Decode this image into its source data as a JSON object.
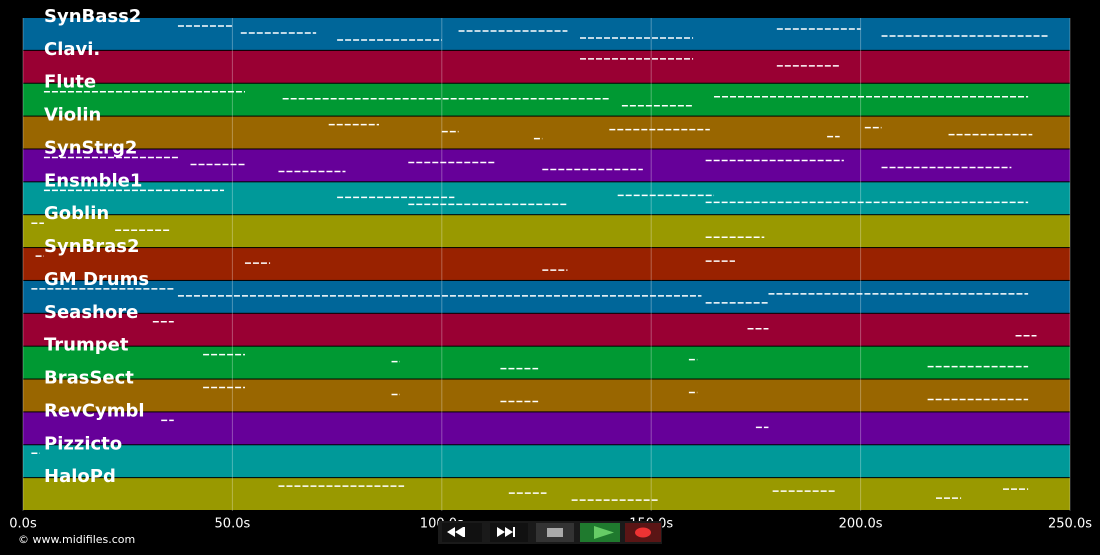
{
  "chart_data": {
    "type": "pianoroll",
    "xlim": [
      0,
      250
    ],
    "xticks": [
      {
        "value": 0,
        "label": "0.0s"
      },
      {
        "value": 50,
        "label": "50.0s"
      },
      {
        "value": 100,
        "label": "100.0s"
      },
      {
        "value": 150,
        "label": "150.0s"
      },
      {
        "value": 200,
        "label": "200.0s"
      },
      {
        "value": 250,
        "label": "250.0s"
      }
    ],
    "grid": true,
    "tracks": [
      {
        "name": "SynBass2",
        "color": "#006699",
        "notes": [
          [
            37,
            50
          ],
          [
            52,
            70
          ],
          [
            75,
            100
          ],
          [
            104,
            130
          ],
          [
            133,
            160
          ],
          [
            180,
            200
          ],
          [
            205,
            245
          ]
        ]
      },
      {
        "name": "Clavi.",
        "color": "#990033",
        "notes": [
          [
            133,
            160
          ],
          [
            180,
            195
          ]
        ]
      },
      {
        "name": "Flute",
        "color": "#009933",
        "notes": [
          [
            5,
            53
          ],
          [
            62,
            140
          ],
          [
            143,
            160
          ],
          [
            165,
            240
          ]
        ]
      },
      {
        "name": "Violin",
        "color": "#996600",
        "notes": [
          [
            73,
            85
          ],
          [
            100,
            104
          ],
          [
            122,
            124
          ],
          [
            140,
            164
          ],
          [
            192,
            195
          ],
          [
            201,
            205
          ],
          [
            221,
            241
          ]
        ]
      },
      {
        "name": "SynStrg2",
        "color": "#660099",
        "notes": [
          [
            5,
            37
          ],
          [
            40,
            53
          ],
          [
            61,
            77
          ],
          [
            92,
            113
          ],
          [
            124,
            148
          ],
          [
            163,
            196
          ],
          [
            205,
            236
          ]
        ]
      },
      {
        "name": "Ensmble1",
        "color": "#009999",
        "notes": [
          [
            5,
            48
          ],
          [
            75,
            103
          ],
          [
            92,
            130
          ],
          [
            142,
            165
          ],
          [
            163,
            240
          ]
        ]
      },
      {
        "name": "Goblin",
        "color": "#999900",
        "notes": [
          [
            2,
            5
          ],
          [
            22,
            35
          ],
          [
            163,
            177
          ]
        ]
      },
      {
        "name": "SynBras2",
        "color": "#992200",
        "notes": [
          [
            3,
            5
          ],
          [
            53,
            59
          ],
          [
            124,
            130
          ],
          [
            163,
            170
          ]
        ]
      },
      {
        "name": "GM Drums",
        "color": "#006699",
        "notes": [
          [
            2,
            36
          ],
          [
            37,
            162
          ],
          [
            163,
            178
          ],
          [
            178,
            240
          ]
        ]
      },
      {
        "name": "Seashore",
        "color": "#990033",
        "notes": [
          [
            31,
            36
          ],
          [
            173,
            178
          ],
          [
            237,
            242
          ]
        ]
      },
      {
        "name": "Trumpet",
        "color": "#009933",
        "notes": [
          [
            43,
            53
          ],
          [
            88,
            90
          ],
          [
            114,
            123
          ],
          [
            159,
            161
          ],
          [
            216,
            240
          ]
        ]
      },
      {
        "name": "BrasSect",
        "color": "#996600",
        "notes": [
          [
            43,
            53
          ],
          [
            88,
            90
          ],
          [
            114,
            123
          ],
          [
            159,
            161
          ],
          [
            216,
            240
          ]
        ]
      },
      {
        "name": "RevCymbl",
        "color": "#660099",
        "notes": [
          [
            33,
            36
          ],
          [
            175,
            178
          ]
        ]
      },
      {
        "name": "Pizzicto",
        "color": "#009999",
        "notes": [
          [
            2,
            4
          ]
        ]
      },
      {
        "name": "HaloPd",
        "color": "#999900",
        "notes": [
          [
            61,
            91
          ],
          [
            116,
            125
          ],
          [
            131,
            152
          ],
          [
            179,
            194
          ],
          [
            218,
            224
          ],
          [
            234,
            240
          ]
        ]
      }
    ],
    "copyright": "© www.midifiles.com"
  }
}
